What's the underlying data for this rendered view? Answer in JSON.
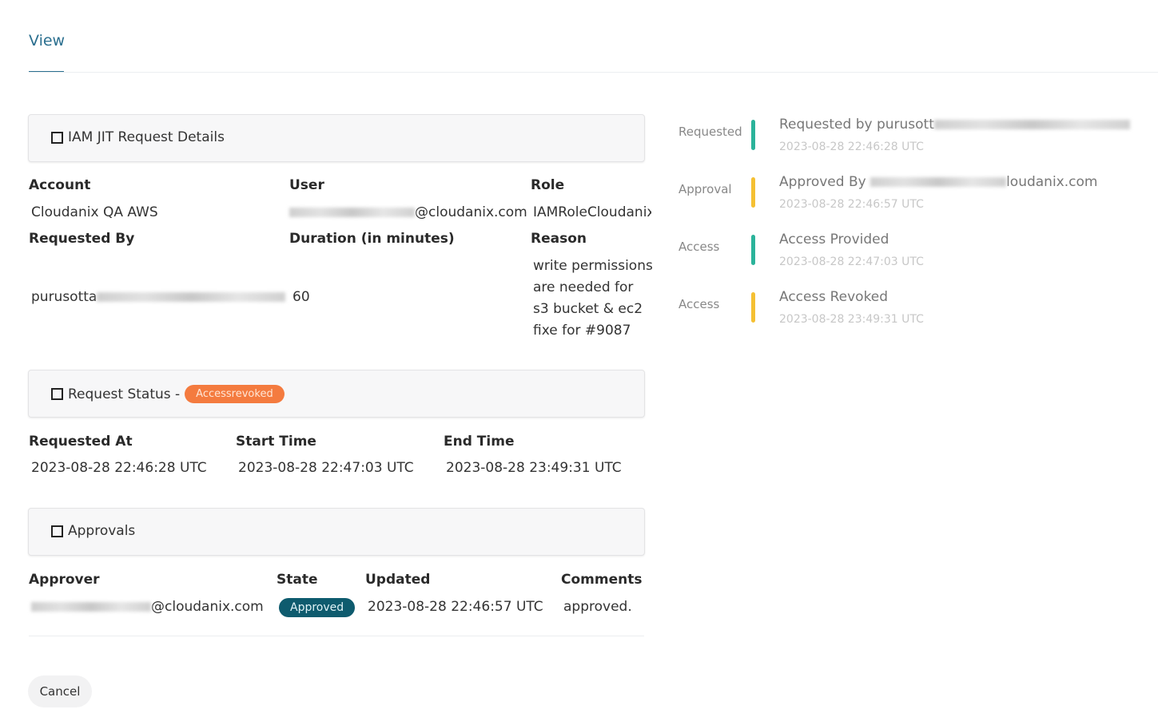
{
  "tabs": [
    {
      "label": "View",
      "active": true
    }
  ],
  "details": {
    "title": "IAM JIT Request Details",
    "account_label": "Account",
    "account": "Cloudanix QA AWS",
    "user_label": "User",
    "user_suffix": "@cloudanix.com",
    "role_label": "Role",
    "role": "IAMRoleCloudanix",
    "requested_by_label": "Requested By",
    "requested_by_prefix": "purusotta",
    "duration_label": "Duration (in minutes)",
    "duration": "60",
    "reason_label": "Reason",
    "reason": "write permissions are needed for s3 bucket & ec2 fixe for #9087"
  },
  "status": {
    "title": "Request Status -",
    "badge": "Accessrevoked",
    "badge_color": "#f47b3f",
    "requested_at_label": "Requested At",
    "requested_at": "2023-08-28 22:46:28 UTC",
    "start_label": "Start Time",
    "start": "2023-08-28 22:47:03 UTC",
    "end_label": "End Time",
    "end": "2023-08-28 23:49:31 UTC"
  },
  "approvals": {
    "title": "Approvals",
    "headers": [
      "Approver",
      "State",
      "Updated",
      "Comments"
    ],
    "rows": [
      {
        "approver_suffix": "@cloudanix.com",
        "state": "Approved",
        "updated": "2023-08-28 22:46:57 UTC",
        "comments": "approved."
      }
    ],
    "state_color": "#0e5b6e"
  },
  "timeline": [
    {
      "label": "Requested",
      "title": "Requested by purusott",
      "time": "2023-08-28 22:46:28 UTC",
      "color": "#2bb39a"
    },
    {
      "label": "Approval",
      "title": "Approved By",
      "title_suffix": "loudanix.com",
      "time": "2023-08-28 22:46:57 UTC",
      "color": "#f5c033"
    },
    {
      "label": "Access",
      "title": "Access Provided",
      "time": "2023-08-28 22:47:03 UTC",
      "color": "#2bb39a"
    },
    {
      "label": "Access",
      "title": "Access Revoked",
      "time": "2023-08-28 23:49:31 UTC",
      "color": "#f5c033"
    }
  ],
  "actions": {
    "cancel": "Cancel"
  }
}
